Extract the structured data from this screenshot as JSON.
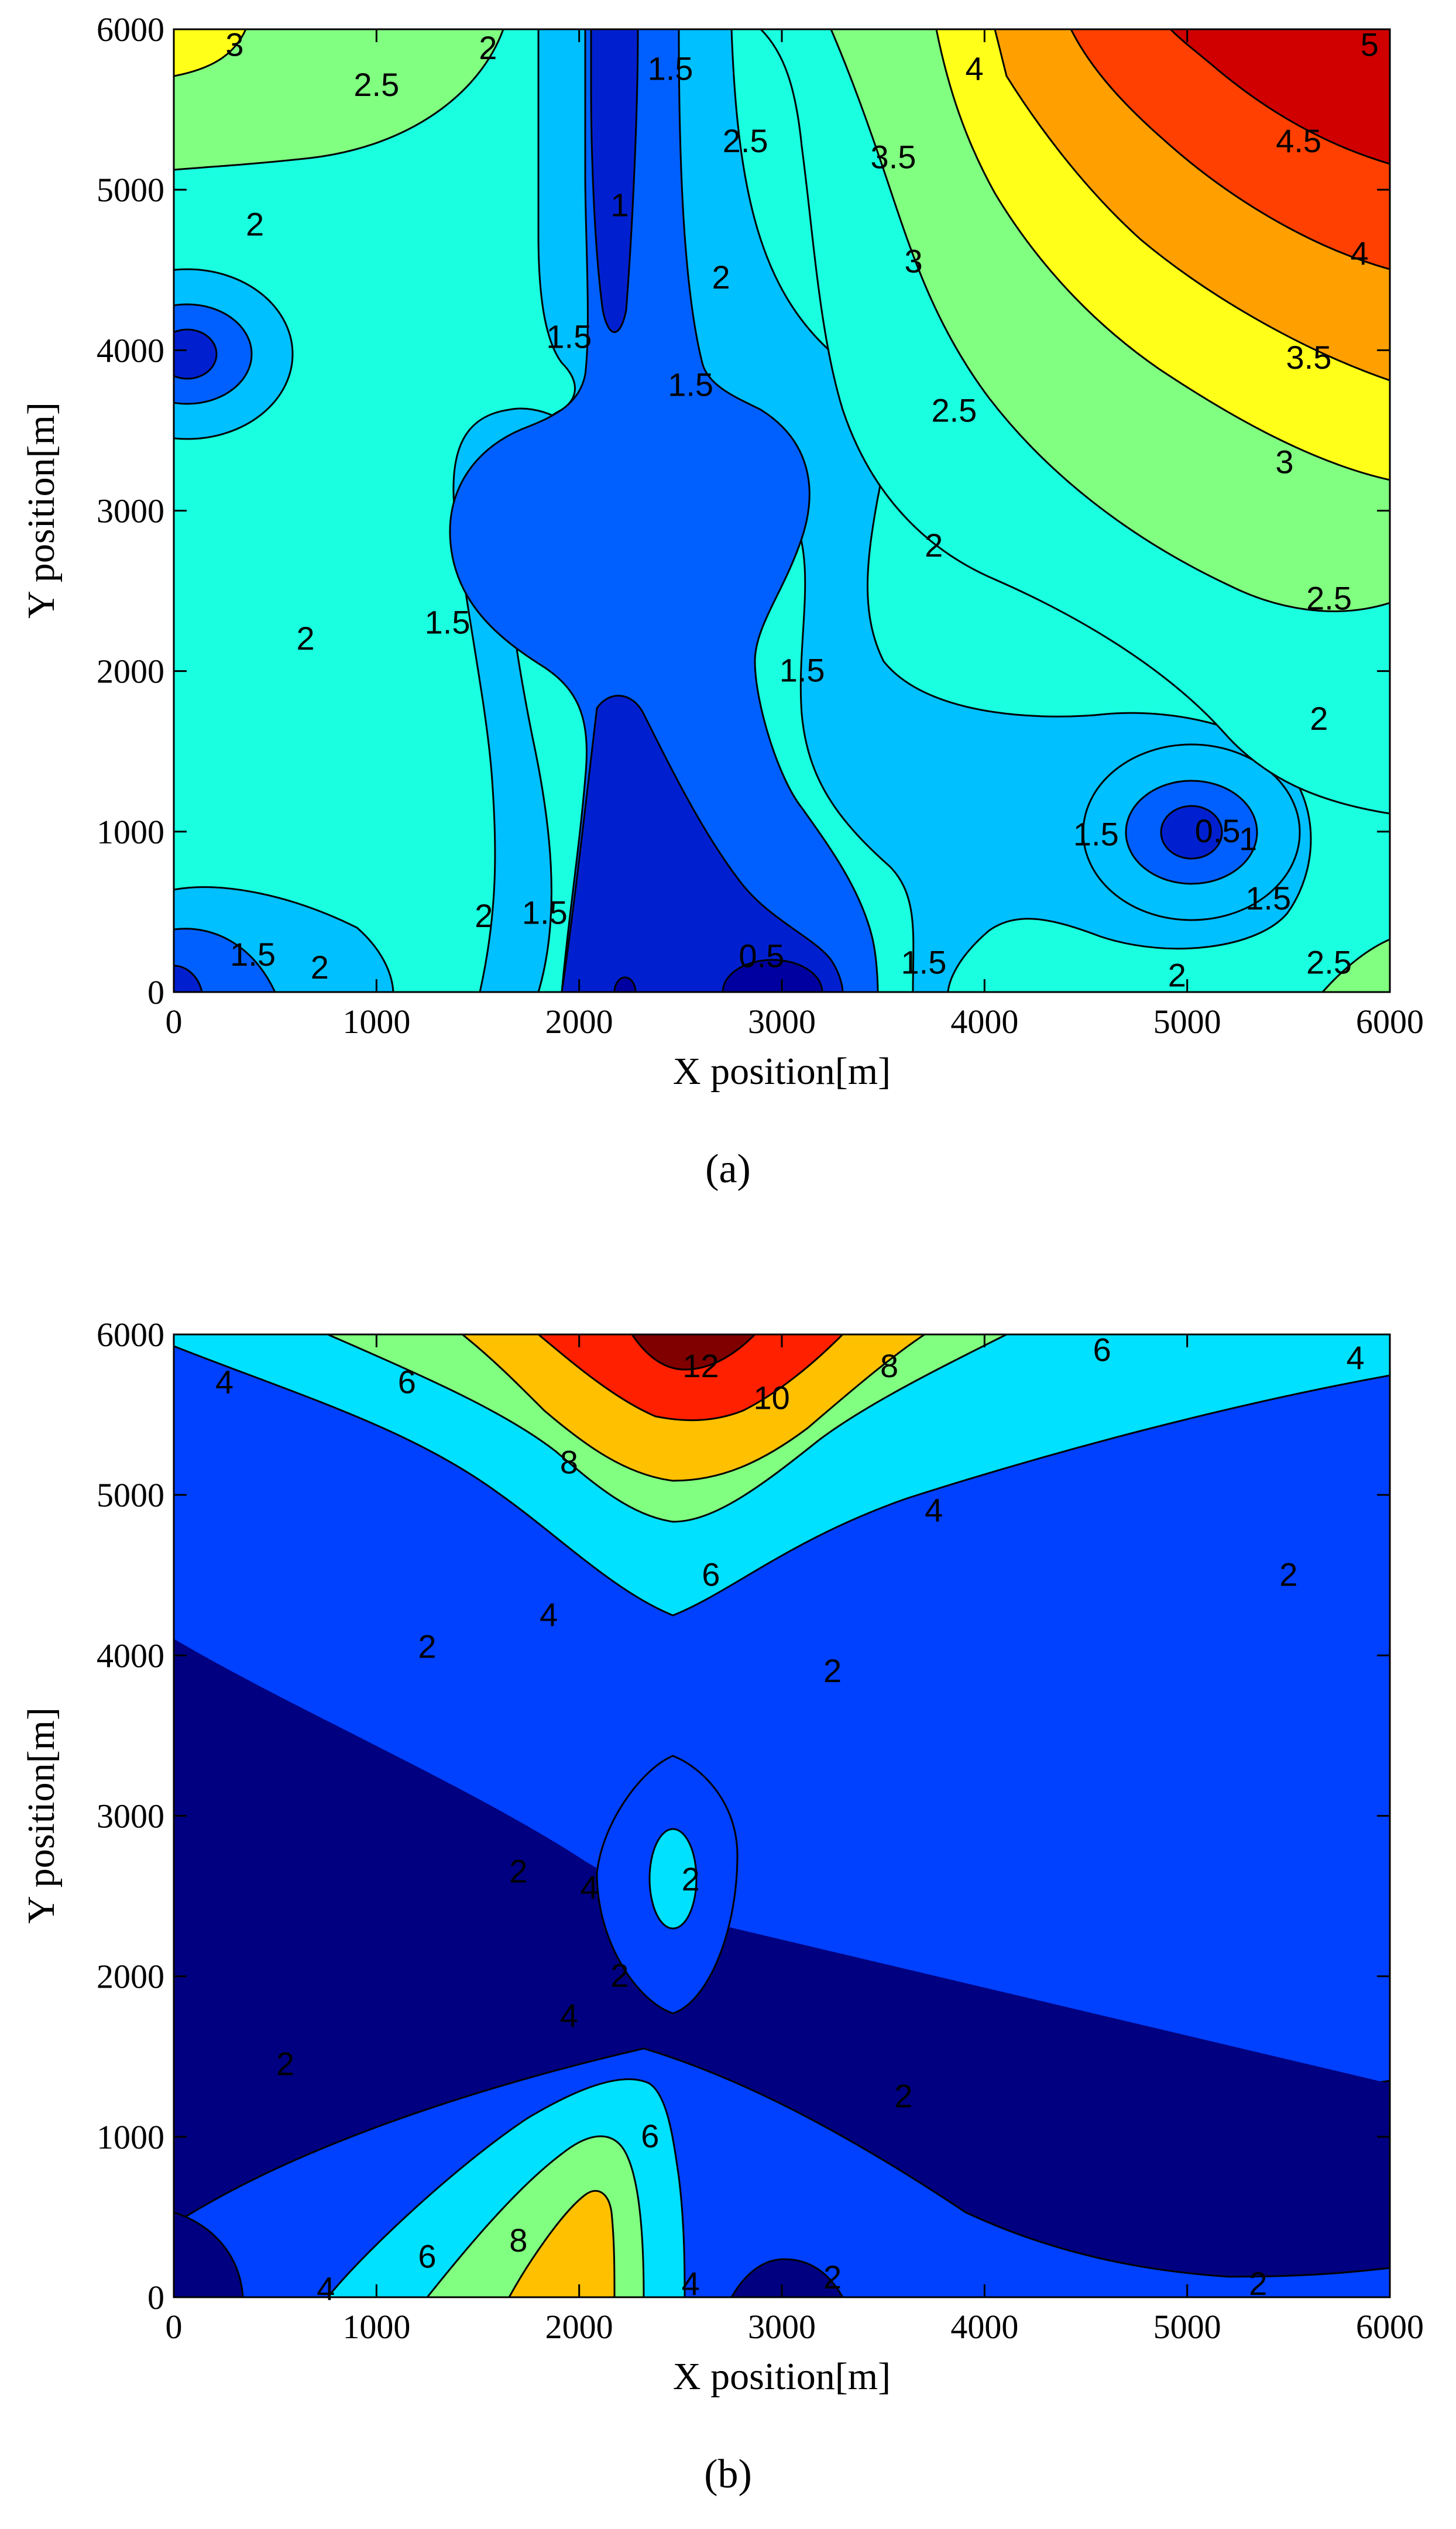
{
  "chart_data": [
    {
      "type": "contour",
      "xlabel": "X position[m]",
      "ylabel": "Y position[m]",
      "xlim": [
        0,
        6000
      ],
      "ylim": [
        0,
        6000
      ],
      "x_ticks": [
        "0",
        "1000",
        "2000",
        "3000",
        "4000",
        "5000",
        "6000"
      ],
      "y_ticks": [
        "0",
        "1000",
        "2000",
        "3000",
        "4000",
        "5000",
        "6000"
      ],
      "levels": [
        0.5,
        1,
        1.5,
        2,
        2.5,
        3,
        3.5,
        4,
        4.5,
        5
      ],
      "grid": false,
      "colormap": "jet",
      "caption": "(a)",
      "contour_labels": [
        {
          "text": "3",
          "x": 300,
          "y": 5900
        },
        {
          "text": "2.5",
          "x": 1000,
          "y": 5650
        },
        {
          "text": "2",
          "x": 1550,
          "y": 5880
        },
        {
          "text": "1.5",
          "x": 2450,
          "y": 5750
        },
        {
          "text": "2.5",
          "x": 2820,
          "y": 5300
        },
        {
          "text": "4",
          "x": 3950,
          "y": 5750
        },
        {
          "text": "4.5",
          "x": 5550,
          "y": 5300
        },
        {
          "text": "5",
          "x": 5900,
          "y": 5900
        },
        {
          "text": "3.5",
          "x": 3550,
          "y": 5200
        },
        {
          "text": "1",
          "x": 2200,
          "y": 4900
        },
        {
          "text": "2",
          "x": 400,
          "y": 4780
        },
        {
          "text": "3",
          "x": 3650,
          "y": 4550
        },
        {
          "text": "2",
          "x": 2700,
          "y": 4450
        },
        {
          "text": "4",
          "x": 5850,
          "y": 4600
        },
        {
          "text": "1.5",
          "x": 1950,
          "y": 4080
        },
        {
          "text": "3.5",
          "x": 5600,
          "y": 3950
        },
        {
          "text": "1.5",
          "x": 2550,
          "y": 3780
        },
        {
          "text": "2.5",
          "x": 3850,
          "y": 3620
        },
        {
          "text": "3",
          "x": 5480,
          "y": 3300
        },
        {
          "text": "2",
          "x": 3750,
          "y": 2780
        },
        {
          "text": "2.5",
          "x": 5700,
          "y": 2450
        },
        {
          "text": "1.5",
          "x": 1350,
          "y": 2300
        },
        {
          "text": "2",
          "x": 650,
          "y": 2200
        },
        {
          "text": "1.5",
          "x": 3100,
          "y": 2000
        },
        {
          "text": "2",
          "x": 5650,
          "y": 1700
        },
        {
          "text": "1.5",
          "x": 4550,
          "y": 980
        },
        {
          "text": "0.5",
          "x": 5150,
          "y": 1000
        },
        {
          "text": "1",
          "x": 5300,
          "y": 950
        },
        {
          "text": "1.5",
          "x": 5400,
          "y": 580
        },
        {
          "text": "2",
          "x": 1530,
          "y": 470
        },
        {
          "text": "1.5",
          "x": 1830,
          "y": 490
        },
        {
          "text": "0.5",
          "x": 2900,
          "y": 220
        },
        {
          "text": "1.5",
          "x": 390,
          "y": 230
        },
        {
          "text": "2",
          "x": 720,
          "y": 150
        },
        {
          "text": "1.5",
          "x": 3700,
          "y": 180
        },
        {
          "text": "2",
          "x": 4950,
          "y": 100
        },
        {
          "text": "2.5",
          "x": 5700,
          "y": 180
        }
      ]
    },
    {
      "type": "contour",
      "xlabel": "X position[m]",
      "ylabel": "Y position[m]",
      "xlim": [
        0,
        6000
      ],
      "ylim": [
        0,
        6000
      ],
      "x_ticks": [
        "0",
        "1000",
        "2000",
        "3000",
        "4000",
        "5000",
        "6000"
      ],
      "y_ticks": [
        "0",
        "1000",
        "2000",
        "3000",
        "4000",
        "5000",
        "6000"
      ],
      "levels": [
        2,
        4,
        6,
        8,
        10,
        12
      ],
      "grid": false,
      "colormap": "jet",
      "caption": "(b)",
      "contour_labels": [
        {
          "text": "4",
          "x": 250,
          "y": 5700
        },
        {
          "text": "6",
          "x": 1150,
          "y": 5700
        },
        {
          "text": "12",
          "x": 2600,
          "y": 5800
        },
        {
          "text": "10",
          "x": 2950,
          "y": 5600
        },
        {
          "text": "8",
          "x": 3530,
          "y": 5800
        },
        {
          "text": "6",
          "x": 4580,
          "y": 5900
        },
        {
          "text": "4",
          "x": 5830,
          "y": 5850
        },
        {
          "text": "8",
          "x": 1950,
          "y": 5200
        },
        {
          "text": "4",
          "x": 3750,
          "y": 4900
        },
        {
          "text": "6",
          "x": 2650,
          "y": 4500
        },
        {
          "text": "2",
          "x": 5500,
          "y": 4500
        },
        {
          "text": "4",
          "x": 1850,
          "y": 4250
        },
        {
          "text": "2",
          "x": 1250,
          "y": 4050
        },
        {
          "text": "2",
          "x": 3250,
          "y": 3900
        },
        {
          "text": "2",
          "x": 1700,
          "y": 2650
        },
        {
          "text": "4",
          "x": 2050,
          "y": 2550
        },
        {
          "text": "2",
          "x": 2550,
          "y": 2600
        },
        {
          "text": "2",
          "x": 2200,
          "y": 2000
        },
        {
          "text": "4",
          "x": 1950,
          "y": 1750
        },
        {
          "text": "2",
          "x": 550,
          "y": 1450
        },
        {
          "text": "2",
          "x": 3600,
          "y": 1250
        },
        {
          "text": "6",
          "x": 2350,
          "y": 1000
        },
        {
          "text": "8",
          "x": 1700,
          "y": 350
        },
        {
          "text": "6",
          "x": 1250,
          "y": 250
        },
        {
          "text": "4",
          "x": 750,
          "y": 50
        },
        {
          "text": "4",
          "x": 2550,
          "y": 80
        },
        {
          "text": "2",
          "x": 3250,
          "y": 120
        },
        {
          "text": "2",
          "x": 5350,
          "y": 80
        }
      ]
    }
  ]
}
